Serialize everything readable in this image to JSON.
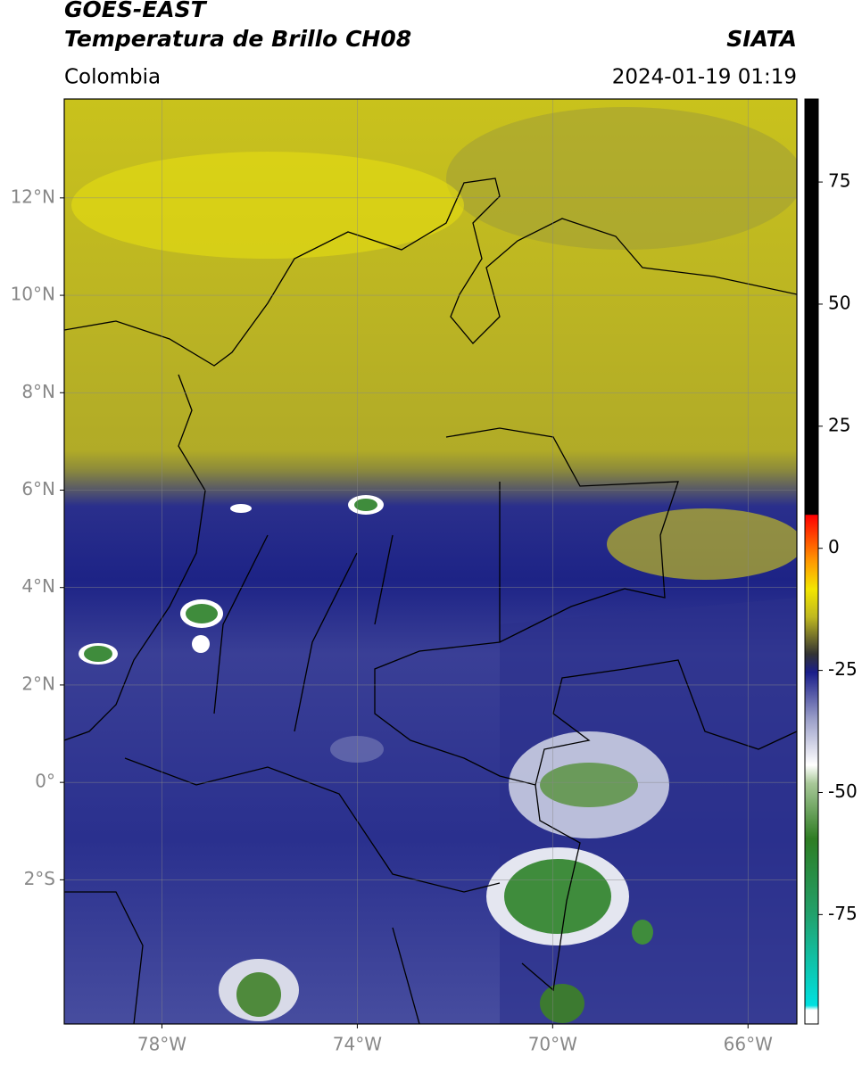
{
  "header": {
    "title": "GOES-EAST",
    "subtitle": "Temperatura de Brillo CH08",
    "source": "SIATA",
    "region": "Colombia",
    "datetime": "2024-01-19 01:19"
  },
  "map": {
    "lon_lim": [
      -80.0,
      -65.0
    ],
    "lat_lim": [
      -4.96,
      14.03
    ],
    "lon_ticks": [
      {
        "value": -78,
        "label": "78°W"
      },
      {
        "value": -74,
        "label": "74°W"
      },
      {
        "value": -70,
        "label": "70°W"
      },
      {
        "value": -66,
        "label": "66°W"
      }
    ],
    "lat_ticks": [
      {
        "value": 12,
        "label": "12°N"
      },
      {
        "value": 10,
        "label": "10°N"
      },
      {
        "value": 8,
        "label": "8°N"
      },
      {
        "value": 6,
        "label": "6°N"
      },
      {
        "value": 4,
        "label": "4°N"
      },
      {
        "value": 2,
        "label": "2°N"
      },
      {
        "value": 0,
        "label": "0°"
      },
      {
        "value": -2,
        "label": "2°S"
      }
    ]
  },
  "colorbar": {
    "lim": [
      -97.4,
      92
    ],
    "ticks": [
      75,
      50,
      25,
      0,
      -25,
      -50,
      -75
    ]
  }
}
